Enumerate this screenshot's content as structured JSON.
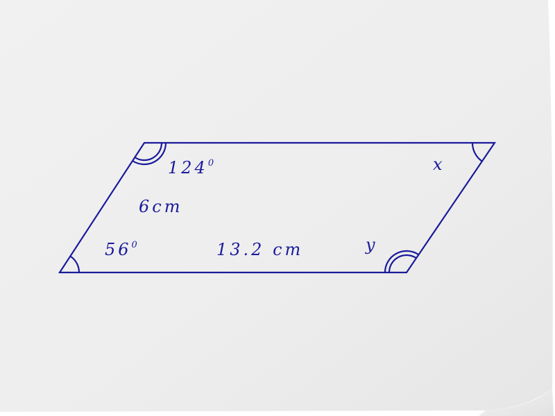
{
  "colors": {
    "ink": "#1a1a9c",
    "paper_light": "#f3f3f3",
    "paper_shadow": "#dcdcdc"
  },
  "figure": {
    "shape": "parallelogram",
    "labels": {
      "top_left_angle": "124",
      "top_left_angle_sup": "0",
      "side_left": "6cm",
      "bottom_left_angle": "56",
      "bottom_left_angle_sup": "0",
      "side_bottom": "13.2 cm",
      "bottom_right_angle": "y",
      "top_right_angle": "x"
    }
  }
}
